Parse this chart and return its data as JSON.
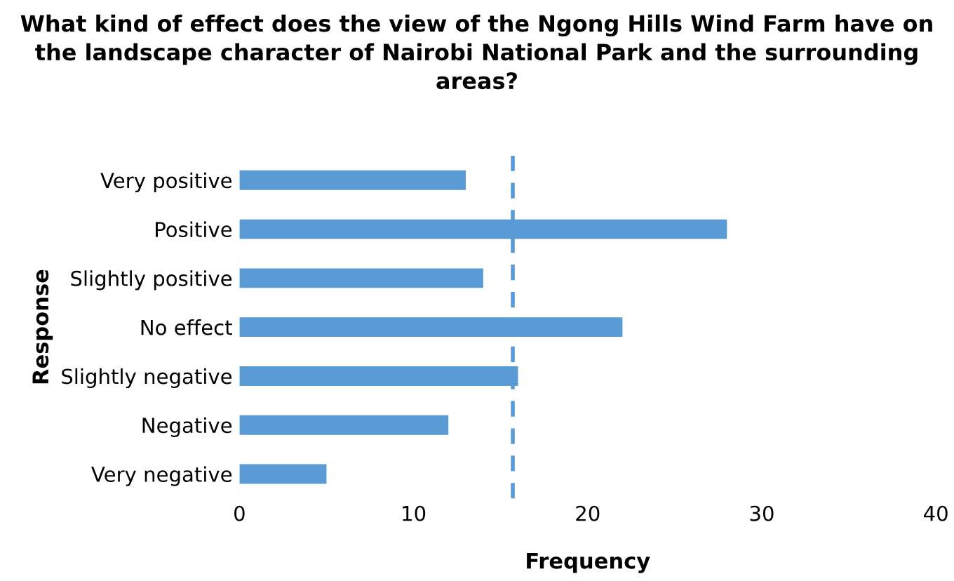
{
  "chart_data": {
    "type": "bar",
    "orientation": "horizontal",
    "title": "What kind of effect does the view of the Ngong Hills Wind Farm have on the landscape character of Nairobi National Park and the surrounding areas?",
    "xlabel": "Frequency",
    "ylabel": "Response",
    "categories": [
      "Very positive",
      "Positive",
      "Slightly positive",
      "No effect",
      "Slightly negative",
      "Negative",
      "Very negative"
    ],
    "values": [
      13,
      28,
      14,
      22,
      16,
      12,
      5
    ],
    "color": "#5b9bd5",
    "xlim": [
      0,
      40
    ],
    "xticks": [
      0,
      10,
      20,
      30,
      40
    ],
    "ref_lines": [
      {
        "axis": "x",
        "value": 15.7,
        "color": "#5b9bd5",
        "line_style": "dashed"
      }
    ],
    "grid": false,
    "legend": false
  }
}
